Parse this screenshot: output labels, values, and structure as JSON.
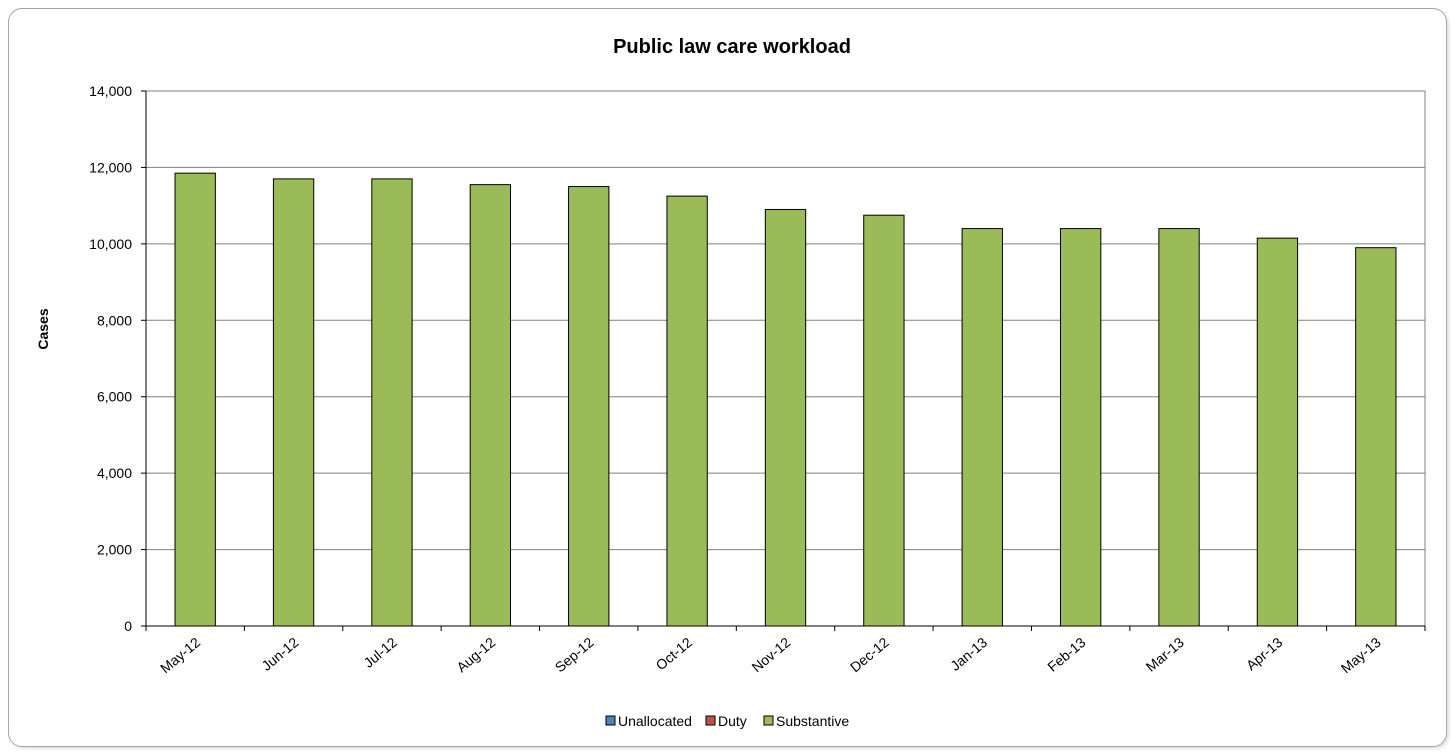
{
  "chart_data": {
    "type": "bar",
    "title": "Public law care workload",
    "xlabel": "",
    "ylabel": "Cases",
    "ylim": [
      0,
      14000
    ],
    "yticks": [
      "0",
      "2,000",
      "4,000",
      "6,000",
      "8,000",
      "10,000",
      "12,000",
      "14,000"
    ],
    "ytick_values": [
      0,
      2000,
      4000,
      6000,
      8000,
      10000,
      12000,
      14000
    ],
    "grid": true,
    "stacked": true,
    "legend_position": "bottom",
    "categories": [
      "May-12",
      "Jun-12",
      "Jul-12",
      "Aug-12",
      "Sep-12",
      "Oct-12",
      "Nov-12",
      "Dec-12",
      "Jan-13",
      "Feb-13",
      "Mar-13",
      "Apr-13",
      "May-13"
    ],
    "series": [
      {
        "name": "Unallocated",
        "color": "#4f81bd",
        "values": [
          0,
          0,
          0,
          0,
          0,
          0,
          0,
          0,
          0,
          0,
          0,
          0,
          0
        ]
      },
      {
        "name": "Duty",
        "color": "#c0504d",
        "values": [
          0,
          0,
          0,
          0,
          0,
          0,
          0,
          0,
          0,
          0,
          0,
          0,
          0
        ]
      },
      {
        "name": "Substantive",
        "color": "#9bbb59",
        "values": [
          11850,
          11700,
          11700,
          11550,
          11500,
          11250,
          10900,
          10750,
          10400,
          10400,
          10400,
          10150,
          9900
        ]
      }
    ]
  }
}
